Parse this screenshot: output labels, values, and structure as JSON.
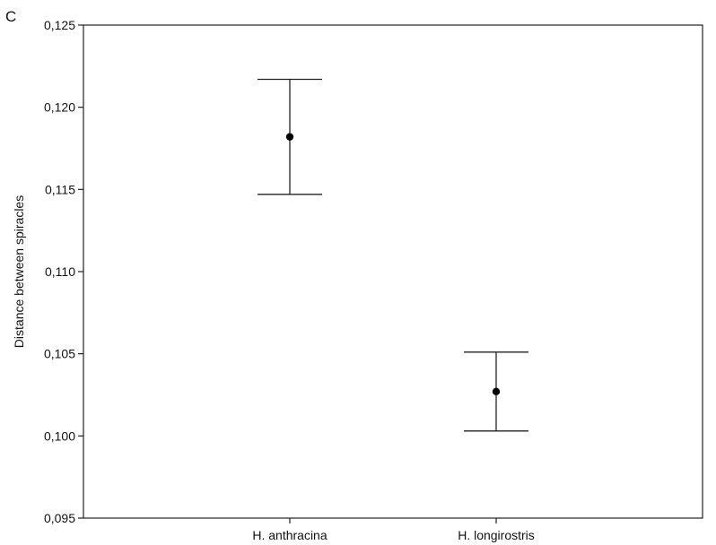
{
  "panel_label": "C",
  "chart_data": {
    "type": "scatter",
    "ylabel": "Distance between spiracles",
    "xlabel": "",
    "categories": [
      "H. anthracina",
      "H. longirostris"
    ],
    "ylim": [
      0.095,
      0.125
    ],
    "yticks": [
      0.095,
      0.1,
      0.105,
      0.11,
      0.115,
      0.12,
      0.125
    ],
    "ytick_labels": [
      "0,095",
      "0,100",
      "0,105",
      "0,110",
      "0,115",
      "0,120",
      "0,125"
    ],
    "grid": false,
    "series": [
      {
        "points": [
          {
            "category": "H. anthracina",
            "mean": 0.1182,
            "lower": 0.1147,
            "upper": 0.1217
          },
          {
            "category": "H. longirostris",
            "mean": 0.1027,
            "lower": 0.1003,
            "upper": 0.1051
          }
        ]
      }
    ],
    "colors": {
      "marker": "#000000",
      "errorbar": "#222222",
      "frame": "#222222"
    }
  }
}
